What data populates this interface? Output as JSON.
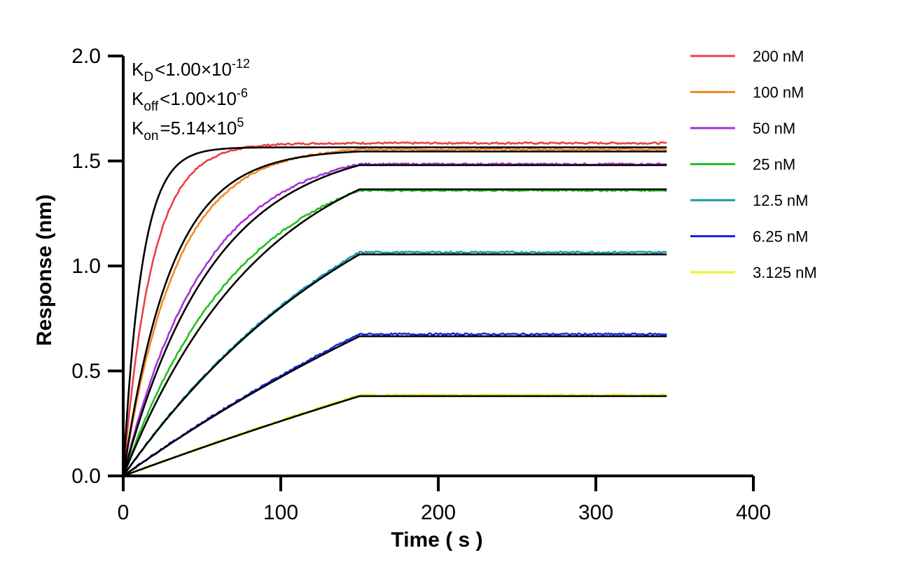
{
  "chart_data": {
    "type": "line",
    "title": "",
    "xlabel": "Time ( s )",
    "ylabel": "Response (nm)",
    "xlim": [
      0,
      400
    ],
    "ylim": [
      0.0,
      2.0
    ],
    "xticks": [
      "0",
      "100",
      "200",
      "300",
      "400"
    ],
    "yticks": [
      "0.0",
      "0.5",
      "1.0",
      "1.5",
      "2.0"
    ],
    "association_end_s": 150,
    "dissociation_end_s": 345,
    "grid": false,
    "legend_position": "right",
    "annotations": {
      "kd": {
        "symbol": "K",
        "sub": "D",
        "relation": "<",
        "mantissa": "1.00×10",
        "exponent": "-12"
      },
      "koff": {
        "symbol": "K",
        "sub": "off",
        "relation": "<",
        "mantissa": "1.00×10",
        "exponent": "-6"
      },
      "kon": {
        "symbol": "K",
        "sub": "on",
        "relation": "=",
        "mantissa": "5.14×10",
        "exponent": "5"
      }
    },
    "series": [
      {
        "name": "200 nM",
        "color": "#ee4040",
        "plateau": 1.585,
        "fit_plateau": 1.565,
        "rate": 0.055,
        "fit_rate": 0.085
      },
      {
        "name": "100 nM",
        "color": "#f08a1c",
        "plateau": 1.555,
        "fit_plateau": 1.545,
        "rate": 0.03,
        "fit_rate": 0.033
      },
      {
        "name": "50 nM",
        "color": "#a832d8",
        "plateau": 1.485,
        "fit_plateau": 1.48,
        "rate": 0.0195,
        "fit_rate": 0.0175
      },
      {
        "name": "25 nM",
        "color": "#22c022",
        "plateau": 1.36,
        "fit_plateau": 1.365,
        "rate": 0.0135,
        "fit_rate": 0.0112
      },
      {
        "name": "12.5 nM",
        "color": "#1a96a8",
        "plateau": 1.065,
        "fit_plateau": 1.055,
        "rate": 0.006,
        "fit_rate": 0.006
      },
      {
        "name": "6.25 nM",
        "color": "#1428e0",
        "plateau": 0.675,
        "fit_plateau": 0.665,
        "rate": 0.0025,
        "fit_rate": 0.0025
      },
      {
        "name": "3.125 nM",
        "color": "#f0f028",
        "plateau": 0.385,
        "fit_plateau": 0.38,
        "rate": 0.0012,
        "fit_rate": 0.0012
      }
    ]
  }
}
